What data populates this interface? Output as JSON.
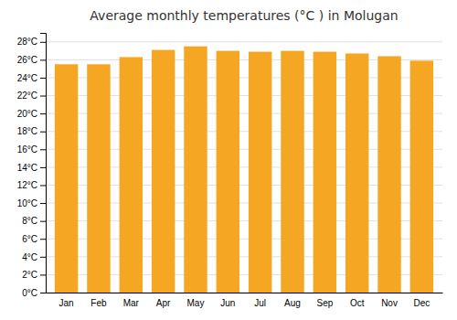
{
  "chart_data": {
    "type": "bar",
    "title": "Average monthly temperatures (°C ) in Molugan",
    "categories": [
      "Jan",
      "Feb",
      "Mar",
      "Apr",
      "May",
      "Jun",
      "Jul",
      "Aug",
      "Sep",
      "Oct",
      "Nov",
      "Dec"
    ],
    "values": [
      25.5,
      25.5,
      26.3,
      27.1,
      27.5,
      27.0,
      26.9,
      27.0,
      26.9,
      26.7,
      26.4,
      25.9
    ],
    "color": "#F5A623",
    "ylim": [
      0,
      29
    ],
    "yticks": [
      {
        "value": 0,
        "label": "0°C"
      },
      {
        "value": 2,
        "label": "2°C"
      },
      {
        "value": 4,
        "label": "4°C"
      },
      {
        "value": 6,
        "label": "6°C"
      },
      {
        "value": 8,
        "label": "8°C"
      },
      {
        "value": 10,
        "label": "10°C"
      },
      {
        "value": 12,
        "label": "12°C"
      },
      {
        "value": 14,
        "label": "14°C"
      },
      {
        "value": 16,
        "label": "16°C"
      },
      {
        "value": 18,
        "label": "18°C"
      },
      {
        "value": 20,
        "label": "20°C"
      },
      {
        "value": 22,
        "label": "22°C"
      },
      {
        "value": 24,
        "label": "24°C"
      },
      {
        "value": 26,
        "label": "26°C"
      },
      {
        "value": 28,
        "label": "28°C"
      }
    ],
    "grid": true
  }
}
